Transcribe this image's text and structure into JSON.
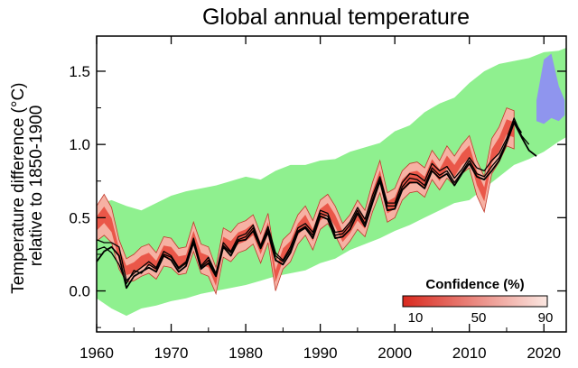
{
  "chart_data": {
    "type": "line",
    "title": "Global annual temperature",
    "ylabel": "Temperature difference (°C) relative to 1850-1900",
    "xlabel": "",
    "xlim": [
      1960,
      2023
    ],
    "ylim": [
      -0.28,
      1.74
    ],
    "xticks": [
      1960,
      1970,
      1980,
      1990,
      2000,
      2010,
      2020
    ],
    "xtick_labels": [
      "1960",
      "1970",
      "1980",
      "1990",
      "2000",
      "2010",
      "2020"
    ],
    "yticks": [
      0.0,
      0.5,
      1.0,
      1.5
    ],
    "ytick_labels": [
      "0.0",
      "0.5",
      "1.0",
      "1.5"
    ],
    "grid": false,
    "legend": {
      "title": "Confidence (%)",
      "position": "bottom-right",
      "tick_labels": [
        "10",
        "50",
        "90"
      ],
      "color_low": "#d92a1f",
      "color_high": "#fbe7e1"
    },
    "colors": {
      "envelope": "#8ff08f",
      "forecast": "#8f95ee",
      "confidence_core": "#e8483a",
      "confidence_outer": "#f6b1a3",
      "confidence_edge": "#c0392b",
      "observed": "#000000",
      "axes": "#000000"
    },
    "envelope": {
      "x": [
        1960,
        1962,
        1964,
        1966,
        1968,
        1970,
        1972,
        1974,
        1976,
        1978,
        1980,
        1982,
        1984,
        1986,
        1988,
        1990,
        1992,
        1994,
        1996,
        1998,
        2000,
        2002,
        2004,
        2006,
        2008,
        2010,
        2012,
        2014,
        2016,
        2018,
        2020,
        2022,
        2023
      ],
      "upper": [
        0.59,
        0.62,
        0.58,
        0.55,
        0.6,
        0.65,
        0.68,
        0.7,
        0.72,
        0.75,
        0.78,
        0.76,
        0.82,
        0.86,
        0.86,
        0.89,
        0.9,
        0.95,
        0.98,
        1.01,
        1.09,
        1.13,
        1.22,
        1.28,
        1.32,
        1.42,
        1.5,
        1.55,
        1.57,
        1.59,
        1.63,
        1.64,
        1.66
      ],
      "lower": [
        -0.05,
        -0.12,
        -0.17,
        -0.12,
        -0.1,
        -0.07,
        -0.05,
        -0.02,
        0.0,
        0.02,
        0.04,
        0.07,
        0.1,
        0.12,
        0.14,
        0.19,
        0.22,
        0.28,
        0.32,
        0.36,
        0.41,
        0.45,
        0.5,
        0.55,
        0.6,
        0.62,
        0.7,
        0.78,
        0.86,
        0.9,
        0.95,
        1.02,
        1.05
      ]
    },
    "forecast": {
      "x": [
        2019.0,
        2020.0,
        2021.0,
        2022.0,
        2022.8
      ],
      "upper": [
        1.3,
        1.58,
        1.62,
        1.4,
        1.3
      ],
      "lower": [
        1.16,
        1.14,
        1.18,
        1.16,
        1.2
      ]
    },
    "confidence_band": {
      "x": [
        1960,
        1961,
        1962,
        1963,
        1964,
        1965,
        1966,
        1967,
        1968,
        1969,
        1970,
        1971,
        1972,
        1973,
        1974,
        1975,
        1976,
        1977,
        1978,
        1979,
        1980,
        1981,
        1982,
        1983,
        1984,
        1985,
        1986,
        1987,
        1988,
        1989,
        1990,
        1991,
        1992,
        1993,
        1994,
        1995,
        1996,
        1997,
        1998,
        1999,
        2000,
        2001,
        2002,
        2003,
        2004,
        2005,
        2006,
        2007,
        2008,
        2009,
        2010,
        2011,
        2012,
        2013,
        2014,
        2015,
        2016
      ],
      "center": [
        0.46,
        0.52,
        0.45,
        0.25,
        0.14,
        0.16,
        0.2,
        0.22,
        0.17,
        0.27,
        0.26,
        0.2,
        0.21,
        0.37,
        0.22,
        0.2,
        0.07,
        0.33,
        0.3,
        0.36,
        0.38,
        0.42,
        0.29,
        0.43,
        0.1,
        0.25,
        0.3,
        0.42,
        0.48,
        0.38,
        0.52,
        0.56,
        0.48,
        0.37,
        0.43,
        0.52,
        0.46,
        0.64,
        0.78,
        0.57,
        0.6,
        0.72,
        0.77,
        0.78,
        0.74,
        0.86,
        0.79,
        0.88,
        0.82,
        0.9,
        0.95,
        0.77,
        0.66,
        0.92,
        1.0,
        1.12,
        1.1
      ],
      "halfwidth": [
        0.12,
        0.14,
        0.12,
        0.1,
        0.08,
        0.09,
        0.1,
        0.1,
        0.09,
        0.1,
        0.1,
        0.09,
        0.09,
        0.1,
        0.1,
        0.1,
        0.09,
        0.1,
        0.1,
        0.1,
        0.1,
        0.1,
        0.1,
        0.1,
        0.1,
        0.1,
        0.1,
        0.1,
        0.1,
        0.1,
        0.1,
        0.1,
        0.1,
        0.09,
        0.09,
        0.1,
        0.09,
        0.1,
        0.11,
        0.1,
        0.1,
        0.1,
        0.1,
        0.1,
        0.1,
        0.1,
        0.1,
        0.11,
        0.1,
        0.1,
        0.11,
        0.12,
        0.12,
        0.12,
        0.12,
        0.13,
        0.13
      ]
    },
    "series": [
      {
        "x": [
          1960,
          1961,
          1962,
          1963,
          1964,
          1965,
          1966,
          1967,
          1968,
          1969,
          1970,
          1971,
          1972,
          1973,
          1974,
          1975,
          1976,
          1977,
          1978,
          1979,
          1980,
          1981,
          1982,
          1983,
          1984,
          1985,
          1986,
          1987,
          1988,
          1989,
          1990,
          1991,
          1992,
          1993,
          1994,
          1995,
          1996,
          1997,
          1998,
          1999,
          2000,
          2001,
          2002,
          2003,
          2004,
          2005,
          2006,
          2007,
          2008,
          2009,
          2010,
          2011,
          2012,
          2013,
          2014,
          2015,
          2016,
          2017,
          2018
        ],
        "values": [
          0.35,
          0.33,
          0.33,
          0.3,
          0.07,
          0.12,
          0.16,
          0.2,
          0.16,
          0.27,
          0.24,
          0.16,
          0.2,
          0.36,
          0.17,
          0.23,
          0.12,
          0.33,
          0.27,
          0.37,
          0.39,
          0.45,
          0.31,
          0.44,
          0.26,
          0.21,
          0.3,
          0.43,
          0.46,
          0.4,
          0.55,
          0.53,
          0.4,
          0.41,
          0.47,
          0.57,
          0.49,
          0.65,
          0.78,
          0.6,
          0.6,
          0.74,
          0.8,
          0.79,
          0.75,
          0.87,
          0.82,
          0.85,
          0.77,
          0.83,
          0.91,
          0.84,
          0.82,
          0.89,
          0.94,
          1.04,
          1.18,
          1.06,
          1.0
        ]
      },
      {
        "x": [
          1960,
          1961,
          1962,
          1963,
          1964,
          1965,
          1966,
          1967,
          1968,
          1969,
          1970,
          1971,
          1972,
          1973,
          1974,
          1975,
          1976,
          1977,
          1978,
          1979,
          1980,
          1981,
          1982,
          1983,
          1984,
          1985,
          1986,
          1987,
          1988,
          1989,
          1990,
          1991,
          1992,
          1993,
          1994,
          1995,
          1996,
          1997,
          1998,
          1999,
          2000,
          2001,
          2002,
          2003,
          2004,
          2005,
          2006,
          2007,
          2008,
          2009,
          2010,
          2011,
          2012,
          2013,
          2014,
          2015,
          2016,
          2017,
          2018,
          2019
        ],
        "values": [
          0.2,
          0.27,
          0.3,
          0.24,
          0.02,
          0.1,
          0.13,
          0.16,
          0.13,
          0.24,
          0.21,
          0.13,
          0.17,
          0.33,
          0.15,
          0.19,
          0.1,
          0.3,
          0.24,
          0.34,
          0.35,
          0.41,
          0.29,
          0.4,
          0.21,
          0.18,
          0.26,
          0.4,
          0.43,
          0.36,
          0.51,
          0.49,
          0.36,
          0.37,
          0.42,
          0.53,
          0.44,
          0.6,
          0.75,
          0.55,
          0.56,
          0.69,
          0.74,
          0.74,
          0.7,
          0.82,
          0.77,
          0.8,
          0.72,
          0.8,
          0.87,
          0.78,
          0.76,
          0.82,
          0.89,
          1.01,
          1.15,
          1.05,
          0.96,
          0.92
        ]
      },
      {
        "x": [
          1960,
          1961,
          1962,
          1963,
          1964,
          1965,
          1966,
          1967,
          1968,
          1969,
          1970,
          1971,
          1972,
          1973,
          1974,
          1975,
          1976,
          1977,
          1978,
          1979,
          1980,
          1981,
          1982,
          1983,
          1984,
          1985,
          1986,
          1987,
          1988,
          1989,
          1990,
          1991,
          1992,
          1993,
          1994,
          1995,
          1996,
          1997,
          1998,
          1999,
          2000,
          2001,
          2002,
          2003,
          2004,
          2005,
          2006,
          2007,
          2008,
          2009,
          2010,
          2011,
          2012,
          2013,
          2014,
          2015,
          2016,
          2017
        ],
        "values": [
          0.28,
          0.3,
          0.26,
          0.18,
          0.05,
          0.14,
          0.12,
          0.18,
          0.15,
          0.25,
          0.23,
          0.15,
          0.19,
          0.34,
          0.16,
          0.21,
          0.11,
          0.31,
          0.26,
          0.35,
          0.37,
          0.43,
          0.3,
          0.42,
          0.24,
          0.2,
          0.28,
          0.41,
          0.44,
          0.38,
          0.53,
          0.51,
          0.38,
          0.39,
          0.45,
          0.55,
          0.46,
          0.62,
          0.76,
          0.58,
          0.58,
          0.71,
          0.77,
          0.76,
          0.72,
          0.84,
          0.79,
          0.82,
          0.74,
          0.81,
          0.89,
          0.8,
          0.78,
          0.85,
          0.91,
          1.02,
          1.16,
          1.08
        ]
      }
    ]
  }
}
